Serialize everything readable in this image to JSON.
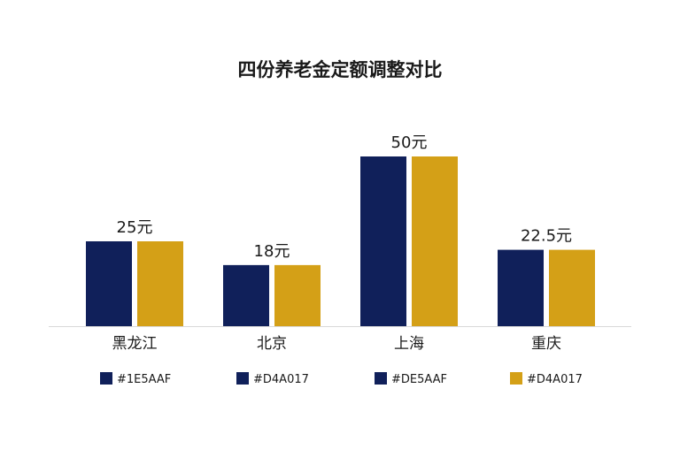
{
  "chart_data": {
    "type": "bar",
    "title": "四份养老金定额调整对比",
    "xlabel": "",
    "ylabel": "",
    "categories": [
      "黑龙江",
      "北京",
      "上海",
      "重庆"
    ],
    "series": [
      {
        "name": "#1E5AAF",
        "color": "#10205a",
        "values": [
          25,
          18,
          50,
          22.5
        ]
      },
      {
        "name": "#D4A017",
        "color": "#d4a017",
        "values": [
          25,
          18,
          50,
          22.5
        ]
      }
    ],
    "data_labels": [
      "25元",
      "18元",
      "50元",
      "22.5元"
    ],
    "legend": [
      {
        "label": "#1E5AAF",
        "color": "#10205a"
      },
      {
        "label": "#D4A017",
        "color": "#10205a"
      },
      {
        "label": "#DE5AAF",
        "color": "#10205a"
      },
      {
        "label": "#D4A017",
        "color": "#d4a017"
      }
    ],
    "legend_position": "bottom",
    "ylim": [
      0,
      50
    ],
    "grid": false
  }
}
